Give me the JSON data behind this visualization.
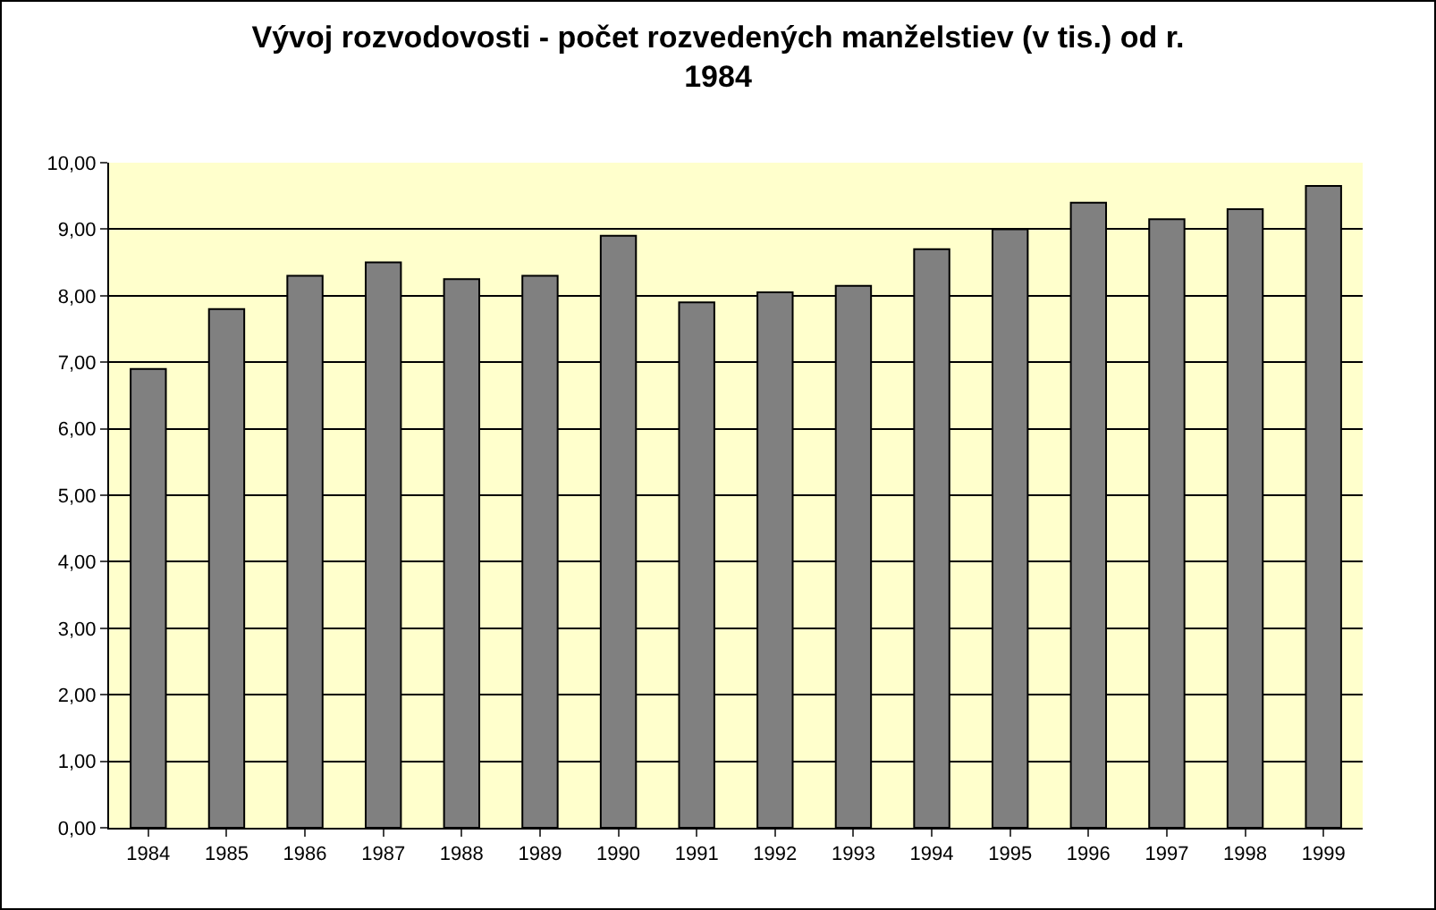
{
  "chart_data": {
    "type": "bar",
    "title": "Vývoj rozvodovosti - počet rozvedených manželstiev (v tis.) od r.\n1984",
    "categories": [
      "1984",
      "1985",
      "1986",
      "1987",
      "1988",
      "1989",
      "1990",
      "1991",
      "1992",
      "1993",
      "1994",
      "1995",
      "1996",
      "1997",
      "1998",
      "1999"
    ],
    "values": [
      6.9,
      7.8,
      8.3,
      8.5,
      8.25,
      8.3,
      8.9,
      7.9,
      8.05,
      8.15,
      8.7,
      9.0,
      9.4,
      9.15,
      9.3,
      9.65
    ],
    "color": "#808080",
    "ylim": [
      0,
      10
    ],
    "yticks": [
      {
        "value": 0,
        "label": "0,00"
      },
      {
        "value": 1,
        "label": "1,00"
      },
      {
        "value": 2,
        "label": "2,00"
      },
      {
        "value": 3,
        "label": "3,00"
      },
      {
        "value": 4,
        "label": "4,00"
      },
      {
        "value": 5,
        "label": "5,00"
      },
      {
        "value": 6,
        "label": "6,00"
      },
      {
        "value": 7,
        "label": "7,00"
      },
      {
        "value": 8,
        "label": "8,00"
      },
      {
        "value": 9,
        "label": "9,00"
      },
      {
        "value": 10,
        "label": "10,00"
      }
    ],
    "grid": "y"
  }
}
